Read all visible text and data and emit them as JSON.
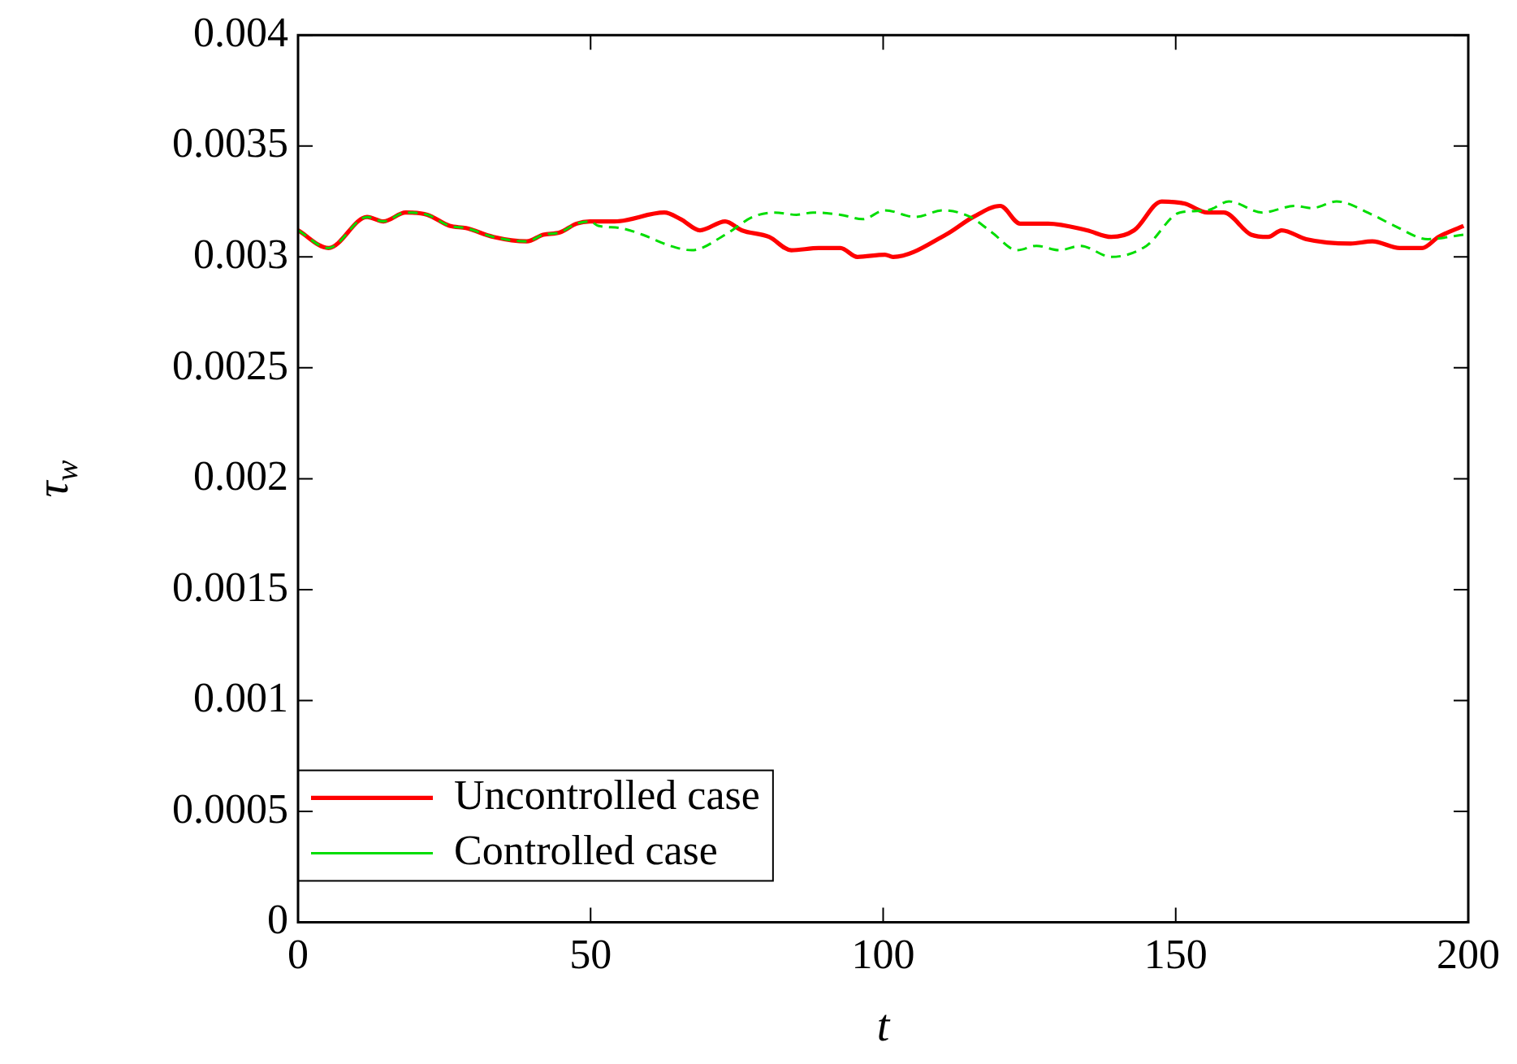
{
  "chart_data": {
    "type": "line",
    "xlabel": "t",
    "ylabel": "τ$_{w}$",
    "xlim": [
      0,
      200
    ],
    "xticks": [
      0,
      50,
      100,
      150,
      200
    ],
    "ylim": [
      0,
      0.004
    ],
    "yticks": [
      0,
      0.0005,
      0.001,
      0.0015,
      0.002,
      0.0025,
      0.003,
      0.0035,
      0.004
    ],
    "legend": "bottom left",
    "grid": false,
    "marker": "none",
    "series": [
      {
        "name": "Uncontrolled case",
        "color": "#ff0000",
        "line_style": "solid",
        "x": [
          0,
          5.2,
          11.8,
          14.6,
          18.4,
          22.1,
          25.9,
          28.7,
          33.4,
          39.1,
          41.9,
          44.7,
          47.6,
          49.9,
          54.1,
          62.6,
          65.4,
          68.7,
          73,
          75.8,
          80.5,
          84.3,
          89,
          92.7,
          95.6,
          100.3,
          101.7,
          110.7,
          115.4,
          120,
          123.4,
          128.2,
          134.8,
          139,
          142.9,
          147.6,
          151.6,
          155.4,
          158.2,
          162.9,
          165.8,
          168.1,
          172.3,
          179.9,
          183.6,
          188.3,
          192.1,
          194.9,
          199.2
        ],
        "values": [
          0.00312,
          0.00304,
          0.00318,
          0.00316,
          0.0032,
          0.00319,
          0.00314,
          0.00313,
          0.00309,
          0.00307,
          0.0031,
          0.00311,
          0.00315,
          0.00316,
          0.00316,
          0.0032,
          0.00317,
          0.00312,
          0.00316,
          0.00312,
          0.00309,
          0.00303,
          0.00304,
          0.00304,
          0.003,
          0.00301,
          0.003,
          0.0031,
          0.00318,
          0.00323,
          0.00315,
          0.00315,
          0.00312,
          0.00309,
          0.00312,
          0.00325,
          0.00324,
          0.0032,
          0.0032,
          0.0031,
          0.00309,
          0.00312,
          0.00308,
          0.00306,
          0.00307,
          0.00304,
          0.00304,
          0.00309,
          0.00314
        ]
      },
      {
        "name": "Controlled case",
        "color": "#00dd00",
        "line_style": "dashed",
        "x": [
          0,
          5.2,
          11.8,
          14.6,
          18.4,
          22.1,
          25.9,
          28.7,
          33.4,
          39.1,
          41.9,
          44.7,
          47.6,
          49.9,
          51.3,
          55.1,
          58.9,
          63.6,
          67.3,
          73,
          77.7,
          81.5,
          85.2,
          88,
          92.7,
          96.5,
          100.3,
          105.5,
          110.2,
          114.9,
          118.6,
          122.9,
          126.2,
          130.1,
          133.7,
          139,
          145,
          150.7,
          155.4,
          159.1,
          164.8,
          170.4,
          173.3,
          177.5,
          183.6,
          187.4,
          193.1,
          199.2
        ],
        "values": [
          0.00312,
          0.00304,
          0.00318,
          0.00316,
          0.0032,
          0.00319,
          0.00314,
          0.00313,
          0.00309,
          0.00307,
          0.0031,
          0.00311,
          0.00315,
          0.00316,
          0.00314,
          0.00313,
          0.0031,
          0.00305,
          0.00303,
          0.0031,
          0.00318,
          0.0032,
          0.00319,
          0.0032,
          0.00319,
          0.00317,
          0.00321,
          0.00318,
          0.00321,
          0.00318,
          0.00311,
          0.00303,
          0.00305,
          0.00303,
          0.00305,
          0.003,
          0.00305,
          0.0032,
          0.00321,
          0.00325,
          0.0032,
          0.00323,
          0.00322,
          0.00325,
          0.00319,
          0.00314,
          0.00308,
          0.0031
        ]
      }
    ]
  }
}
